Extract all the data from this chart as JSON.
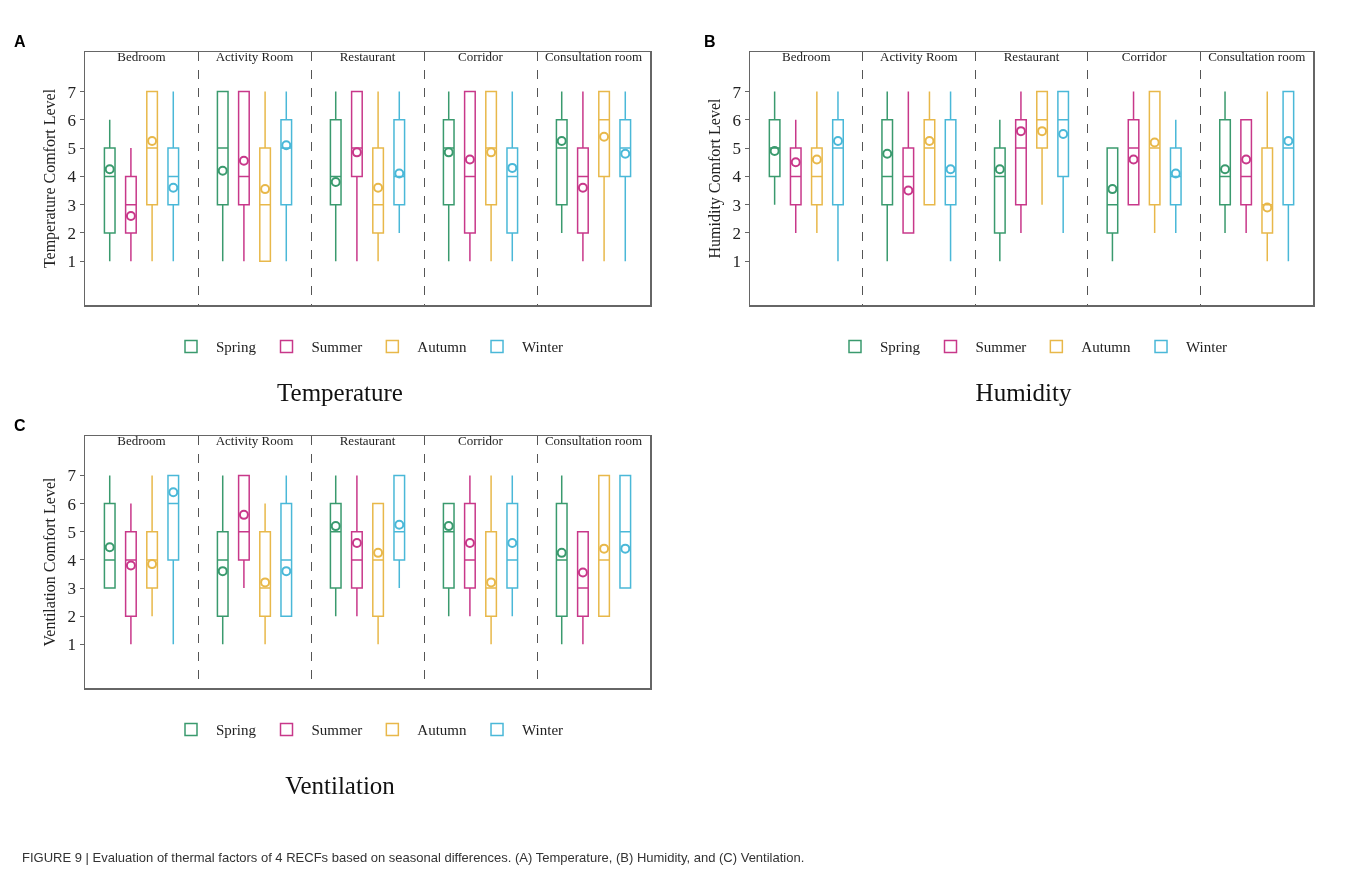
{
  "chart_data": [
    {
      "type": "box",
      "title": "Temperature",
      "ylabel": "Temperature Comfort Level",
      "annotations": [
        "A"
      ],
      "categories": [
        "Bedroom",
        "Activity Room",
        "Restaurant",
        "Corridor",
        "Consultation room"
      ],
      "ylim": [
        -0.55,
        8.4
      ],
      "yticks": [
        1,
        2,
        3,
        4,
        5,
        6,
        7
      ],
      "grid": "x",
      "legend": "bottom",
      "marker": "circle",
      "series": [
        {
          "name": "Spring",
          "color": "#3a9a6e",
          "boxes": [
            {
              "low": 1,
              "q1": 2,
              "median": 4,
              "q3": 5,
              "high": 6,
              "mean": 4.25
            },
            {
              "low": 1,
              "q1": 3,
              "median": 5,
              "q3": 7,
              "high": 7,
              "mean": 4.2
            },
            {
              "low": 1,
              "q1": 3,
              "median": 4,
              "q3": 6,
              "high": 7,
              "mean": 3.8
            },
            {
              "low": 1,
              "q1": 3,
              "median": 5,
              "q3": 6,
              "high": 7,
              "mean": 4.85
            },
            {
              "low": 2,
              "q1": 3,
              "median": 5,
              "q3": 6,
              "high": 7,
              "mean": 5.25
            }
          ]
        },
        {
          "name": "Summer",
          "color": "#c8388a",
          "boxes": [
            {
              "low": 1,
              "q1": 2,
              "median": 3,
              "q3": 4,
              "high": 5,
              "mean": 2.6
            },
            {
              "low": 1,
              "q1": 3,
              "median": 4,
              "q3": 7,
              "high": 7,
              "mean": 4.55
            },
            {
              "low": 1,
              "q1": 4,
              "median": 5,
              "q3": 7,
              "high": 7,
              "mean": 4.85
            },
            {
              "low": 1,
              "q1": 2,
              "median": 4,
              "q3": 7,
              "high": 7,
              "mean": 4.6
            },
            {
              "low": 1,
              "q1": 2,
              "median": 4,
              "q3": 5,
              "high": 7,
              "mean": 3.6
            }
          ]
        },
        {
          "name": "Autumn",
          "color": "#e8b84a",
          "boxes": [
            {
              "low": 1,
              "q1": 3,
              "median": 5,
              "q3": 7,
              "high": 7,
              "mean": 5.25
            },
            {
              "low": 1,
              "q1": 1,
              "median": 3,
              "q3": 5,
              "high": 7,
              "mean": 3.55
            },
            {
              "low": 1,
              "q1": 2,
              "median": 3,
              "q3": 5,
              "high": 7,
              "mean": 3.6
            },
            {
              "low": 1,
              "q1": 3,
              "median": 5,
              "q3": 7,
              "high": 7,
              "mean": 4.85
            },
            {
              "low": 1,
              "q1": 4,
              "median": 6,
              "q3": 7,
              "high": 7,
              "mean": 5.4
            }
          ]
        },
        {
          "name": "Winter",
          "color": "#4ab8d8",
          "boxes": [
            {
              "low": 1,
              "q1": 3,
              "median": 4,
              "q3": 5,
              "high": 7,
              "mean": 3.6
            },
            {
              "low": 1,
              "q1": 3,
              "median": 5,
              "q3": 6,
              "high": 7,
              "mean": 5.1
            },
            {
              "low": 2,
              "q1": 3,
              "median": 4,
              "q3": 6,
              "high": 7,
              "mean": 4.1
            },
            {
              "low": 1,
              "q1": 2,
              "median": 4,
              "q3": 5,
              "high": 7,
              "mean": 4.3
            },
            {
              "low": 1,
              "q1": 4,
              "median": 5,
              "q3": 6,
              "high": 7,
              "mean": 4.8
            }
          ]
        }
      ]
    },
    {
      "type": "box",
      "title": "Humidity",
      "ylabel": "Humidity Comfort Level",
      "annotations": [
        "B"
      ],
      "categories": [
        "Bedroom",
        "Activity Room",
        "Restaurant",
        "Corridor",
        "Consultation room"
      ],
      "ylim": [
        -0.55,
        8.4
      ],
      "yticks": [
        1,
        2,
        3,
        4,
        5,
        6,
        7
      ],
      "grid": "x",
      "legend": "bottom",
      "marker": "circle",
      "series": [
        {
          "name": "Spring",
          "color": "#3a9a6e",
          "boxes": [
            {
              "low": 3,
              "q1": 4,
              "median": 5,
              "q3": 6,
              "high": 7,
              "mean": 4.9
            },
            {
              "low": 1,
              "q1": 3,
              "median": 4,
              "q3": 6,
              "high": 7,
              "mean": 4.8
            },
            {
              "low": 1,
              "q1": 2,
              "median": 4,
              "q3": 5,
              "high": 6,
              "mean": 4.25
            },
            {
              "low": 1,
              "q1": 2,
              "median": 3,
              "q3": 5,
              "high": 5,
              "mean": 3.55
            },
            {
              "low": 2,
              "q1": 3,
              "median": 4,
              "q3": 6,
              "high": 7,
              "mean": 4.25
            }
          ]
        },
        {
          "name": "Summer",
          "color": "#c8388a",
          "boxes": [
            {
              "low": 2,
              "q1": 3,
              "median": 4,
              "q3": 5,
              "high": 6,
              "mean": 4.5
            },
            {
              "low": 2,
              "q1": 2,
              "median": 4,
              "q3": 5,
              "high": 7,
              "mean": 3.5
            },
            {
              "low": 2,
              "q1": 3,
              "median": 5,
              "q3": 6,
              "high": 7,
              "mean": 5.6
            },
            {
              "low": 3,
              "q1": 3,
              "median": 5,
              "q3": 6,
              "high": 7,
              "mean": 4.6
            },
            {
              "low": 2,
              "q1": 3,
              "median": 4,
              "q3": 6,
              "high": 6,
              "mean": 4.6
            }
          ]
        },
        {
          "name": "Autumn",
          "color": "#e8b84a",
          "boxes": [
            {
              "low": 2,
              "q1": 3,
              "median": 4,
              "q3": 5,
              "high": 7,
              "mean": 4.6
            },
            {
              "low": 3,
              "q1": 3,
              "median": 5,
              "q3": 6,
              "high": 7,
              "mean": 5.25
            },
            {
              "low": 3,
              "q1": 5,
              "median": 6,
              "q3": 7,
              "high": 7,
              "mean": 5.6
            },
            {
              "low": 2,
              "q1": 3,
              "median": 5,
              "q3": 7,
              "high": 7,
              "mean": 5.2
            },
            {
              "low": 1,
              "q1": 2,
              "median": 3,
              "q3": 5,
              "high": 7,
              "mean": 2.9
            }
          ]
        },
        {
          "name": "Winter",
          "color": "#4ab8d8",
          "boxes": [
            {
              "low": 1,
              "q1": 3,
              "median": 5,
              "q3": 6,
              "high": 7,
              "mean": 5.25
            },
            {
              "low": 1,
              "q1": 3,
              "median": 4,
              "q3": 6,
              "high": 7,
              "mean": 4.25
            },
            {
              "low": 2,
              "q1": 4,
              "median": 6,
              "q3": 7,
              "high": 7,
              "mean": 5.5
            },
            {
              "low": 2,
              "q1": 3,
              "median": 4,
              "q3": 5,
              "high": 6,
              "mean": 4.1
            },
            {
              "low": 1,
              "q1": 3,
              "median": 5,
              "q3": 7,
              "high": 7,
              "mean": 5.25
            }
          ]
        }
      ]
    },
    {
      "type": "box",
      "title": "Ventilation",
      "ylabel": "Ventilation Comfort Level",
      "annotations": [
        "C",
        "FIGURE 9 | Evaluation of thermal factors of 4 RECFs based on seasonal differences. (A) Temperature, (B) Humidity, and (C) Ventilation."
      ],
      "categories": [
        "Bedroom",
        "Activity Room",
        "Restaurant",
        "Corridor",
        "Consultation room"
      ],
      "ylim": [
        -0.55,
        8.4
      ],
      "yticks": [
        1,
        2,
        3,
        4,
        5,
        6,
        7
      ],
      "grid": "x",
      "legend": "bottom",
      "marker": "circle",
      "series": [
        {
          "name": "Spring",
          "color": "#3a9a6e",
          "boxes": [
            {
              "low": 3,
              "q1": 3,
              "median": 4,
              "q3": 6,
              "high": 7,
              "mean": 4.45
            },
            {
              "low": 1,
              "q1": 2,
              "median": 4,
              "q3": 5,
              "high": 7,
              "mean": 3.6
            },
            {
              "low": 2,
              "q1": 3,
              "median": 5,
              "q3": 6,
              "high": 7,
              "mean": 5.2
            },
            {
              "low": 2,
              "q1": 3,
              "median": 5,
              "q3": 6,
              "high": 6,
              "mean": 5.2
            },
            {
              "low": 1,
              "q1": 2,
              "median": 4,
              "q3": 6,
              "high": 7,
              "mean": 4.25
            }
          ]
        },
        {
          "name": "Summer",
          "color": "#c8388a",
          "boxes": [
            {
              "low": 1,
              "q1": 2,
              "median": 4,
              "q3": 5,
              "high": 6,
              "mean": 3.8
            },
            {
              "low": 3,
              "q1": 4,
              "median": 5,
              "q3": 7,
              "high": 7,
              "mean": 5.6
            },
            {
              "low": 2,
              "q1": 3,
              "median": 4,
              "q3": 5,
              "high": 7,
              "mean": 4.6
            },
            {
              "low": 2,
              "q1": 3,
              "median": 4,
              "q3": 6,
              "high": 7,
              "mean": 4.6
            },
            {
              "low": 1,
              "q1": 2,
              "median": 3,
              "q3": 5,
              "high": 5,
              "mean": 3.55
            }
          ]
        },
        {
          "name": "Autumn",
          "color": "#e8b84a",
          "boxes": [
            {
              "low": 2,
              "q1": 3,
              "median": 4,
              "q3": 5,
              "high": 7,
              "mean": 3.85
            },
            {
              "low": 1,
              "q1": 2,
              "median": 3,
              "q3": 5,
              "high": 6,
              "mean": 3.2
            },
            {
              "low": 1,
              "q1": 2,
              "median": 4,
              "q3": 6,
              "high": 6,
              "mean": 4.25
            },
            {
              "low": 1,
              "q1": 2,
              "median": 3,
              "q3": 5,
              "high": 7,
              "mean": 3.2
            },
            {
              "low": 2,
              "q1": 2,
              "median": 4,
              "q3": 7,
              "high": 7,
              "mean": 4.4
            }
          ]
        },
        {
          "name": "Winter",
          "color": "#4ab8d8",
          "boxes": [
            {
              "low": 1,
              "q1": 4,
              "median": 6,
              "q3": 7,
              "high": 7,
              "mean": 6.4
            },
            {
              "low": 2,
              "q1": 2,
              "median": 4,
              "q3": 6,
              "high": 7,
              "mean": 3.6
            },
            {
              "low": 3,
              "q1": 4,
              "median": 5,
              "q3": 7,
              "high": 7,
              "mean": 5.25
            },
            {
              "low": 2,
              "q1": 3,
              "median": 4,
              "q3": 6,
              "high": 7,
              "mean": 4.6
            },
            {
              "low": 3,
              "q1": 3,
              "median": 5,
              "q3": 7,
              "high": 7,
              "mean": 4.4
            }
          ]
        }
      ]
    }
  ]
}
